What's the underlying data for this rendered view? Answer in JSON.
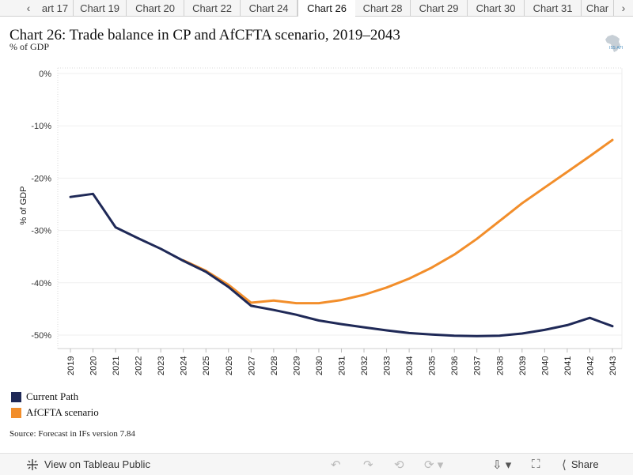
{
  "tabs": {
    "prev_icon": "chevron-left-icon",
    "next_icon": "chevron-right-icon",
    "items": [
      "art 17",
      "Chart 19",
      "Chart 20",
      "Chart 22",
      "Chart 24",
      "Chart 26",
      "Chart 28",
      "Chart 29",
      "Chart 30",
      "Chart 31",
      "Char"
    ],
    "active_index": 5
  },
  "header": {
    "title": "Chart 26: Trade balance in CP and AfCFTA scenario, 2019–2043",
    "subtitle": "% of GDP",
    "logo_text": "ISS AFI"
  },
  "chart_data": {
    "type": "line",
    "x": [
      2019,
      2020,
      2021,
      2022,
      2023,
      2024,
      2025,
      2026,
      2027,
      2028,
      2029,
      2030,
      2031,
      2032,
      2033,
      2034,
      2035,
      2036,
      2037,
      2038,
      2039,
      2040,
      2041,
      2042,
      2043
    ],
    "series": [
      {
        "name": "Current Path",
        "color": "#1f2957",
        "values": [
          -23.6,
          -23.0,
          -29.4,
          -31.5,
          -33.5,
          -35.8,
          -37.9,
          -40.8,
          -44.4,
          -45.2,
          -46.1,
          -47.2,
          -47.9,
          -48.5,
          -49.1,
          -49.6,
          -49.9,
          -50.1,
          -50.2,
          -50.1,
          -49.7,
          -49.0,
          -48.1,
          -46.7,
          -48.3
        ]
      },
      {
        "name": "AfCFTA scenario",
        "color": "#f28e2b",
        "values": [
          null,
          null,
          null,
          null,
          null,
          -35.7,
          -37.7,
          -40.4,
          -43.8,
          -43.4,
          -43.9,
          -43.9,
          -43.3,
          -42.3,
          -40.9,
          -39.2,
          -37.1,
          -34.6,
          -31.6,
          -28.2,
          -24.8,
          -21.8,
          -18.8,
          -15.8,
          -12.7
        ]
      }
    ],
    "ylabel": "% of GDP",
    "y_ticks": [
      0,
      -10,
      -20,
      -30,
      -40,
      -50
    ],
    "y_tick_labels": [
      "0%",
      "-10%",
      "-20%",
      "-30%",
      "-40%",
      "-50%"
    ],
    "ylim": [
      -52,
      1
    ],
    "grid": true,
    "legend_position": "bottom-left"
  },
  "source": "Source: Forecast in IFs version 7.84",
  "footer": {
    "view_label": "View on Tableau Public",
    "share_label": "Share",
    "icons": [
      "tableau-icon",
      "undo-icon",
      "redo-icon",
      "revert-icon",
      "refresh-icon",
      "download-icon",
      "fullscreen-icon",
      "share-icon"
    ]
  }
}
